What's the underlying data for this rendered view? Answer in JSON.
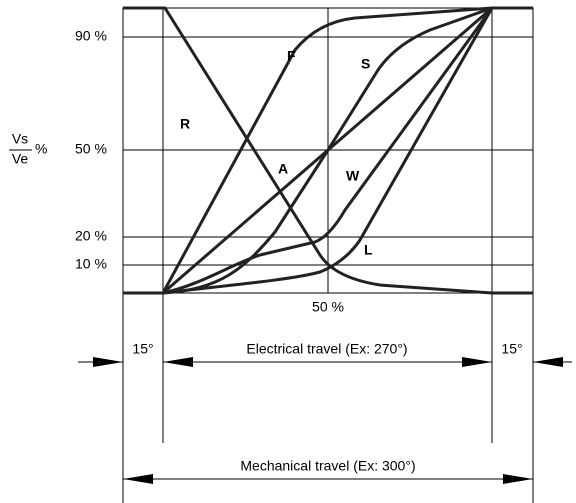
{
  "y_labels": [
    "90 %",
    "50 %",
    "20 %",
    "10 %"
  ],
  "x_label": "50 %",
  "y_axis": {
    "numerator": "Vs",
    "denominator": "Ve",
    "unit": "%"
  },
  "curve_labels": [
    "R",
    "F",
    "S",
    "A",
    "W",
    "L"
  ],
  "dimensions": {
    "left": "15°",
    "electrical": "Electrical travel (Ex: 270°)",
    "right": "15°",
    "mechanical": "Mechanical travel (Ex: 300°)"
  }
}
